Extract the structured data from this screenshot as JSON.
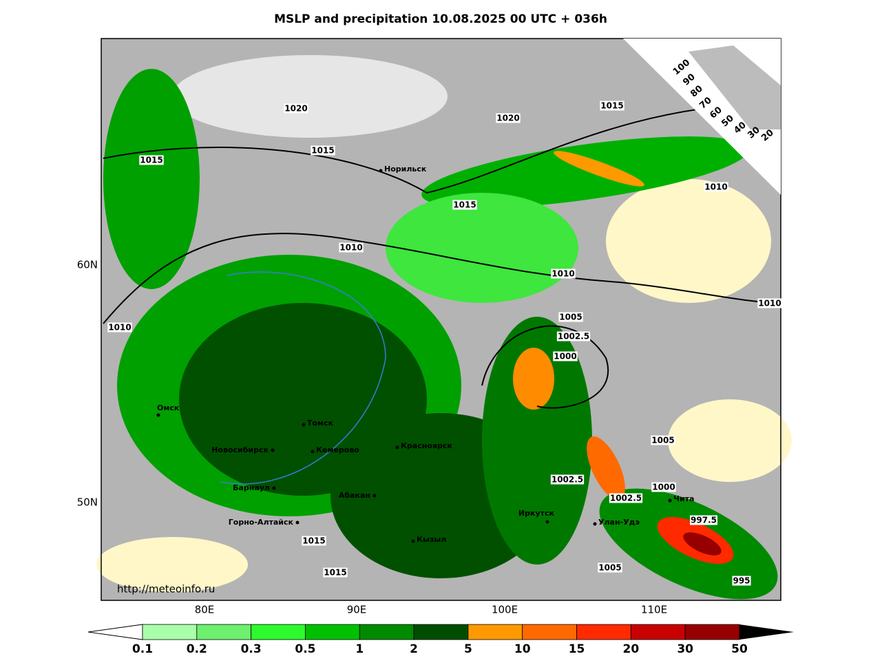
{
  "title": "MSLP and precipitation 10.08.2025 00 UTC + 036h",
  "lat_labels": [
    "60N",
    "50N"
  ],
  "lon_labels": [
    "80E",
    "90E",
    "100E",
    "110E"
  ],
  "cities": [
    "Норильск",
    "Омск",
    "Томск",
    "Новосибирск",
    "Кемерово",
    "Красноярск",
    "Барнаул",
    "Абакан",
    "Горно-Алтайск",
    "Кызыл",
    "Иркутск",
    "Улан-Удэ",
    "Чита"
  ],
  "isobar_labels": [
    "1020",
    "1020",
    "1015",
    "1015",
    "1015",
    "1015",
    "1010",
    "1010",
    "1010",
    "1010",
    "1010",
    "1005",
    "1002.5",
    "1000",
    "1005",
    "1002.5",
    "1000",
    "1002.5",
    "997.5",
    "1015",
    "1015",
    "1005",
    "995"
  ],
  "cloud_legend": [
    "100",
    "90",
    "80",
    "70",
    "60",
    "50",
    "40",
    "30",
    "20"
  ],
  "colorbar": {
    "labels": [
      "0.1",
      "0.2",
      "0.3",
      "0.5",
      "1",
      "2",
      "5",
      "10",
      "15",
      "20",
      "30",
      "50"
    ],
    "colors": [
      "#aaffaa",
      "#6ef06e",
      "#2dfa2d",
      "#00c000",
      "#008a00",
      "#004d00",
      "#ff9900",
      "#ff6a00",
      "#ff2a00",
      "#c80000",
      "#960000"
    ]
  },
  "url": "http://meteoinfo.ru"
}
